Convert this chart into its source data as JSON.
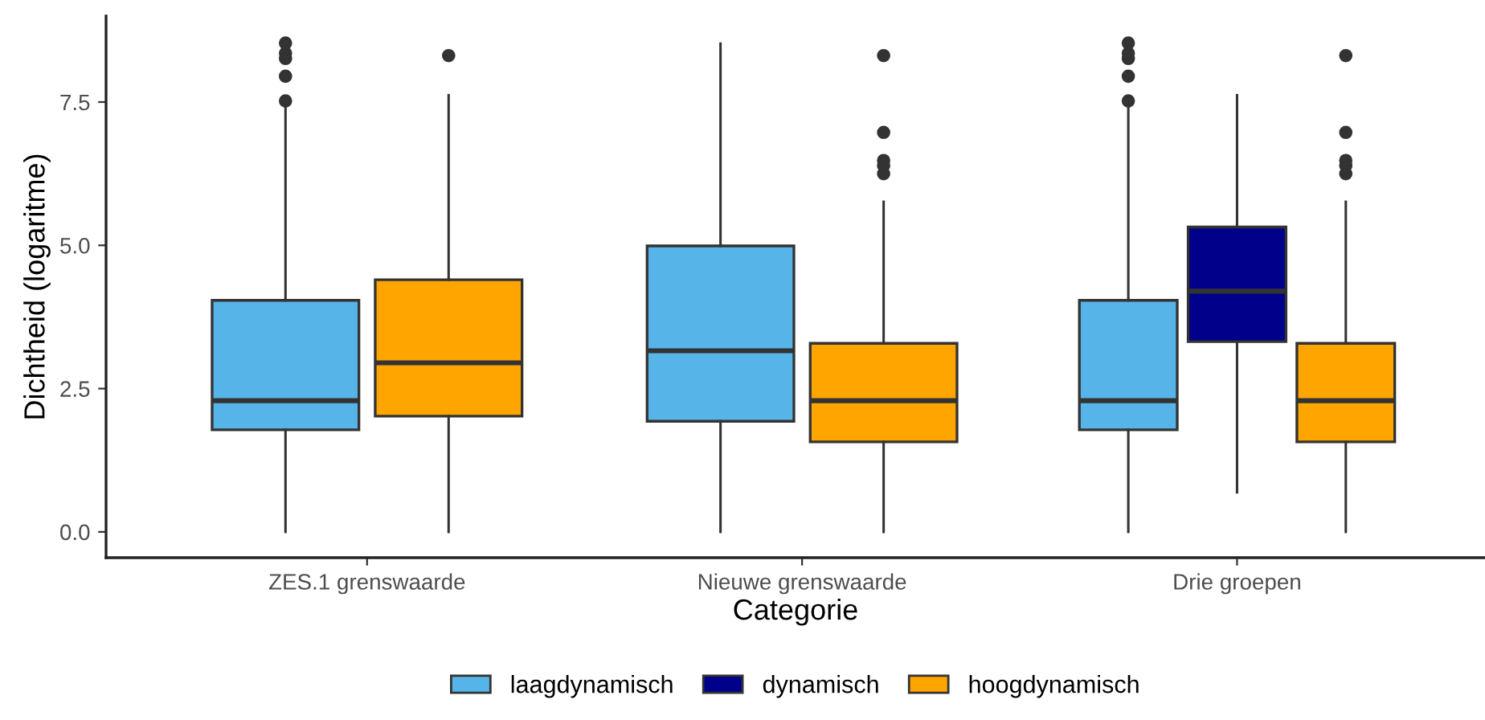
{
  "chart_data": {
    "type": "box",
    "xlabel": "Categorie",
    "ylabel": "Dichtheid (logaritme)",
    "categories": [
      "ZES.1 grenswaarde",
      "Nieuwe grenswaarde",
      "Drie groepen"
    ],
    "ylim": [
      -0.45,
      9.0
    ],
    "yticks": [
      {
        "value": 0,
        "label": "0.0"
      },
      {
        "value": 2.5,
        "label": "2.5"
      },
      {
        "value": 5,
        "label": "5.0"
      },
      {
        "value": 7.5,
        "label": "7.5"
      }
    ],
    "grid": false,
    "legend": "bottom",
    "series": [
      {
        "name": "laagdynamisch",
        "color": "#56b4e9",
        "boxes": [
          {
            "low": 0,
            "q1": 1.78,
            "median": 2.29,
            "q3": 4.04,
            "high": 7.45,
            "outliers": [
              7.52,
              7.95,
              8.26,
              8.35,
              8.53
            ]
          },
          {
            "low": 0,
            "q1": 1.93,
            "median": 3.16,
            "q3": 4.99,
            "high": 8.52
          },
          {
            "low": 0,
            "q1": 1.78,
            "median": 2.29,
            "q3": 4.04,
            "high": 7.45,
            "outliers": [
              7.52,
              7.95,
              8.26,
              8.35,
              8.53
            ]
          }
        ]
      },
      {
        "name": "dynamisch",
        "color": "#00008b",
        "boxes": [
          null,
          null,
          {
            "low": 0.69,
            "q1": 3.32,
            "median": 4.2,
            "q3": 5.32,
            "high": 7.62
          }
        ]
      },
      {
        "name": "hoogdynamisch",
        "color": "#ffa500",
        "boxes": [
          {
            "low": 0,
            "q1": 2.02,
            "median": 2.95,
            "q3": 4.4,
            "high": 7.62,
            "outliers": [
              8.31
            ]
          },
          {
            "low": 0,
            "q1": 1.57,
            "median": 2.29,
            "q3": 3.29,
            "high": 5.76,
            "outliers": [
              6.25,
              6.39,
              6.48,
              6.97,
              8.31
            ]
          },
          {
            "low": 0,
            "q1": 1.57,
            "median": 2.29,
            "q3": 3.29,
            "high": 5.76,
            "outliers": [
              6.25,
              6.39,
              6.48,
              6.97,
              8.31
            ]
          }
        ]
      }
    ]
  }
}
